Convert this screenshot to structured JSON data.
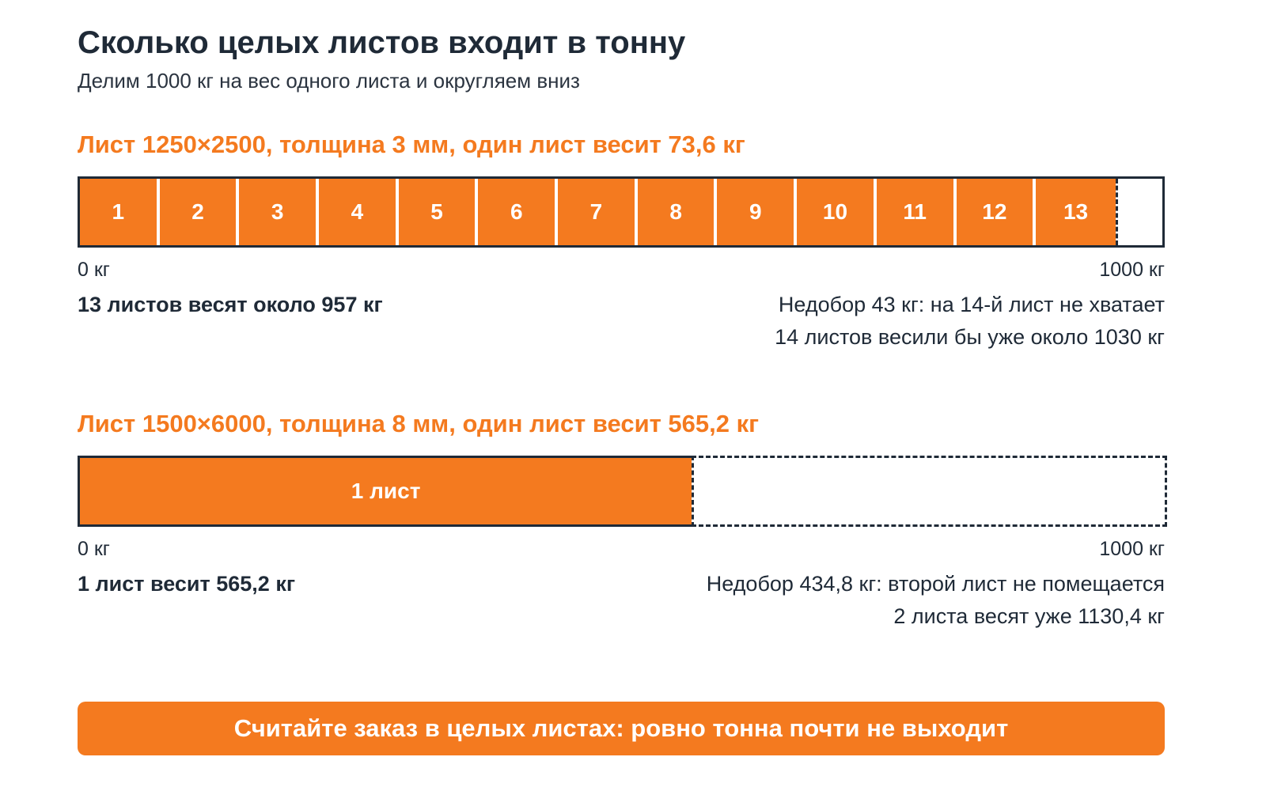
{
  "header": {
    "title": "Сколько целых листов входит в тонну",
    "subtitle": "Делим 1000 кг на вес одного листа и округляем вниз"
  },
  "sections": [
    {
      "heading": "Лист 1250×2500, толщина 3 мм, один лист весит 73,6 кг",
      "sheet_weight_kg": 73.6,
      "capacity_kg": 1000,
      "segment_labels": [
        "1",
        "2",
        "3",
        "4",
        "5",
        "6",
        "7",
        "8",
        "9",
        "10",
        "11",
        "12",
        "13"
      ],
      "axis_min_label": "0 кг",
      "axis_max_label": "1000 кг",
      "summary": "13 листов весят около 957 кг",
      "note_line1": "Недобор 43 кг: на 14-й лист не хватает",
      "note_line2": "14 листов весили бы уже около 1030 кг"
    },
    {
      "heading": "Лист 1500×6000, толщина 8 мм, один лист весит 565,2 кг",
      "sheet_weight_kg": 565.2,
      "capacity_kg": 1000,
      "segment_labels": [
        "1 лист"
      ],
      "axis_min_label": "0 кг",
      "axis_max_label": "1000 кг",
      "summary": "1 лист весит 565,2 кг",
      "note_line1": "Недобор 434,8 кг: второй лист не помещается",
      "note_line2": "2 листа весят уже 1130,4 кг"
    }
  ],
  "cta": {
    "label": "Считайте заказ в целых листах: ровно тонна почти не выходит"
  },
  "colors": {
    "accent": "#f47a1f",
    "text": "#1f2a37",
    "background": "#ffffff"
  }
}
